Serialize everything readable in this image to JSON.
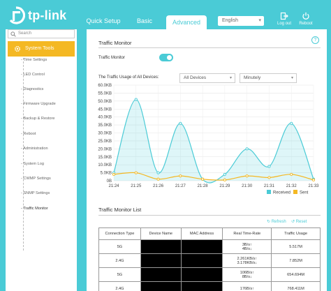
{
  "header": {
    "logo_text": "tp-link",
    "tabs": [
      {
        "label": "Quick Setup"
      },
      {
        "label": "Basic"
      },
      {
        "label": "Advanced"
      }
    ],
    "language": "English",
    "logout_label": "Log out",
    "reboot_label": "Reboot",
    "accent_color": "#4acbd6"
  },
  "sidebar": {
    "search_placeholder": "Search",
    "section_label": "System Tools",
    "section_color": "#f4b823",
    "items": [
      {
        "label": "- Time Settings"
      },
      {
        "label": "- LED Control"
      },
      {
        "label": "- Diagnostics"
      },
      {
        "label": "- Firmware Upgrade"
      },
      {
        "label": "- Backup & Restore"
      },
      {
        "label": "- Reboot"
      },
      {
        "label": "- Administration"
      },
      {
        "label": "- System Log"
      },
      {
        "label": "- CWMP Settings"
      },
      {
        "label": "- SNMP Settings"
      },
      {
        "label": "- Traffic Monitor"
      }
    ]
  },
  "main": {
    "monitor_title": "Traffic Monitor",
    "toggle_label": "Traffic Monitor",
    "toggle_on": true,
    "usage_label": "The Traffic Usage of All Devices:",
    "device_select": "All Devices",
    "interval_select": "Minutely",
    "list_title": "Traffic Monitor List",
    "refresh_label": "Refresh",
    "reset_label": "Reset",
    "table": {
      "headers": [
        "Connection Type",
        "Device Name",
        "MAC Address",
        "Real Time-Rate",
        "Traffic Usage"
      ],
      "rows": [
        {
          "type": "5G",
          "rate_up": "3B/s↑",
          "rate_down": "4B/s↓",
          "usage": "5.517M"
        },
        {
          "type": "2.4G",
          "rate_up": "2.261KB/s↑",
          "rate_down": "3.178KB/s↓",
          "usage": "7.852M"
        },
        {
          "type": "5G",
          "rate_up": "106B/s↑",
          "rate_down": "8B/s↓",
          "usage": "654.694M"
        },
        {
          "type": "2.4G",
          "rate_up": "176B/s↑",
          "rate_down": "",
          "usage": "768.411M"
        }
      ]
    }
  },
  "chart_data": {
    "type": "area",
    "categories": [
      "21:24",
      "21:25",
      "21:26",
      "21:27",
      "21:28",
      "21:29",
      "21:30",
      "21:31",
      "21:32",
      "21:33"
    ],
    "y_tick_labels": [
      "0B",
      "5.0KB",
      "10.0KB",
      "15.0KB",
      "20.0KB",
      "25.0KB",
      "30.0KB",
      "35.0KB",
      "40.0KB",
      "45.0KB",
      "50.0KB",
      "55.0KB",
      "60.0KB"
    ],
    "ylim": [
      0,
      60
    ],
    "y_unit": "KB",
    "series": [
      {
        "name": "Received",
        "color": "#4acbd6",
        "values": [
          5,
          51,
          5,
          36,
          1,
          4,
          20,
          9,
          36,
          1
        ]
      },
      {
        "name": "Sent",
        "color": "#f4b823",
        "values": [
          4,
          5,
          1,
          3,
          1,
          0.5,
          3,
          2,
          4,
          0.5
        ]
      }
    ],
    "legend_position": "bottom-right",
    "grid": true
  }
}
